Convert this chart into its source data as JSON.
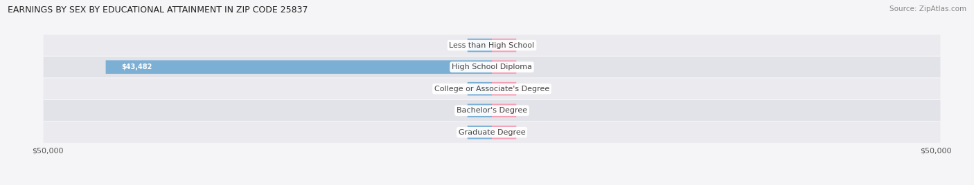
{
  "title": "EARNINGS BY SEX BY EDUCATIONAL ATTAINMENT IN ZIP CODE 25837",
  "source": "Source: ZipAtlas.com",
  "categories": [
    "Less than High School",
    "High School Diploma",
    "College or Associate's Degree",
    "Bachelor's Degree",
    "Graduate Degree"
  ],
  "male_values": [
    0,
    43482,
    0,
    0,
    0
  ],
  "female_values": [
    0,
    0,
    0,
    0,
    0
  ],
  "max_value": 50000,
  "male_color": "#7bafd4",
  "female_color": "#f5a0b5",
  "row_bg_color": "#e8e8ee",
  "row_alt_color": "#e0e0e8",
  "label_color": "#444444",
  "title_color": "#222222",
  "source_color": "#888888",
  "axis_label_color": "#555555",
  "legend_male_color": "#7bafd4",
  "legend_female_color": "#f5a0b5",
  "figsize": [
    14.06,
    2.68
  ],
  "dpi": 100
}
